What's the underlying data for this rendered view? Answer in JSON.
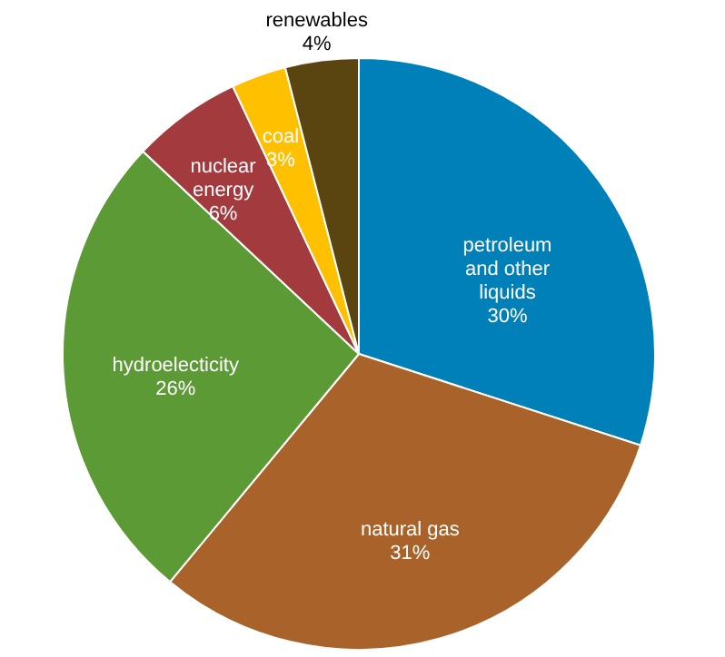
{
  "chart_data": {
    "type": "pie",
    "categories": [
      "petroleum\nand other\nliquids",
      "natural gas",
      "hydroelecticity",
      "nuclear\nenergy",
      "coal",
      "renewables"
    ],
    "values": [
      30,
      31,
      26,
      6,
      3,
      4
    ],
    "value_labels": [
      "30%",
      "31%",
      "26%",
      "6%",
      "3%",
      "4%"
    ],
    "colors": [
      "#0080b8",
      "#a8622a",
      "#5c9a35",
      "#a33a3e",
      "#ffc000",
      "#5a4510"
    ]
  }
}
